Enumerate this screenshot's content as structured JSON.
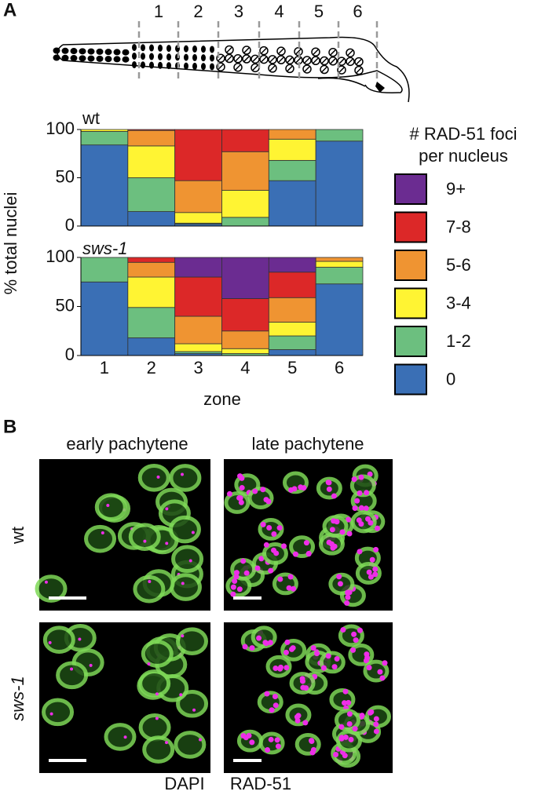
{
  "panel_labels": [
    "A",
    "B"
  ],
  "diagram": {
    "zones": [
      "1",
      "2",
      "3",
      "4",
      "5",
      "6"
    ]
  },
  "chart_data": [
    {
      "type": "bar",
      "stacked": true,
      "title": "wt",
      "ylabel": "% total nuclei",
      "legend_title": "# RAD-51 foci per nucleus",
      "categories": [
        "1",
        "2",
        "3",
        "4",
        "5",
        "6"
      ],
      "ylim": [
        0,
        100
      ],
      "yticks": [
        0,
        50,
        100
      ],
      "series": [
        {
          "name": "0",
          "color": "#3a6fb5",
          "values": [
            84,
            15,
            2,
            0,
            47,
            88
          ]
        },
        {
          "name": "1-2",
          "color": "#6cbf7f",
          "values": [
            14,
            35,
            1,
            9,
            21,
            12
          ]
        },
        {
          "name": "3-4",
          "color": "#fff433",
          "values": [
            2,
            33,
            11,
            28,
            22,
            0
          ]
        },
        {
          "name": "5-6",
          "color": "#ef9432",
          "values": [
            0,
            16,
            33,
            40,
            10,
            0
          ]
        },
        {
          "name": "7-8",
          "color": "#dc2828",
          "values": [
            0,
            1,
            53,
            23,
            0,
            0
          ]
        },
        {
          "name": "9+",
          "color": "#6b2c91",
          "values": [
            0,
            0,
            0,
            0,
            0,
            0
          ]
        }
      ]
    },
    {
      "type": "bar",
      "stacked": true,
      "title": "sws-1",
      "xlabel": "zone",
      "categories": [
        "1",
        "2",
        "3",
        "4",
        "5",
        "6"
      ],
      "ylim": [
        0,
        100
      ],
      "yticks": [
        0,
        50,
        100
      ],
      "series": [
        {
          "name": "0",
          "color": "#3a6fb5",
          "values": [
            75,
            18,
            2,
            0,
            6,
            73
          ]
        },
        {
          "name": "1-2",
          "color": "#6cbf7f",
          "values": [
            25,
            31,
            2,
            2,
            14,
            17
          ]
        },
        {
          "name": "3-4",
          "color": "#fff433",
          "values": [
            0,
            31,
            8,
            5,
            14,
            6
          ]
        },
        {
          "name": "5-6",
          "color": "#ef9432",
          "values": [
            0,
            15,
            28,
            18,
            25,
            4
          ]
        },
        {
          "name": "7-8",
          "color": "#dc2828",
          "values": [
            0,
            5,
            40,
            33,
            26,
            0
          ]
        },
        {
          "name": "9+",
          "color": "#6b2c91",
          "values": [
            0,
            0,
            20,
            42,
            15,
            0
          ]
        }
      ]
    }
  ],
  "microscopy": {
    "columns": [
      "early pachytene",
      "late pachytene"
    ],
    "rows": [
      "wt",
      "sws-1"
    ],
    "channels": [
      {
        "name": "DAPI",
        "color": "#7ed957"
      },
      {
        "name": "RAD-51",
        "color": "#ee2ee8"
      }
    ]
  }
}
